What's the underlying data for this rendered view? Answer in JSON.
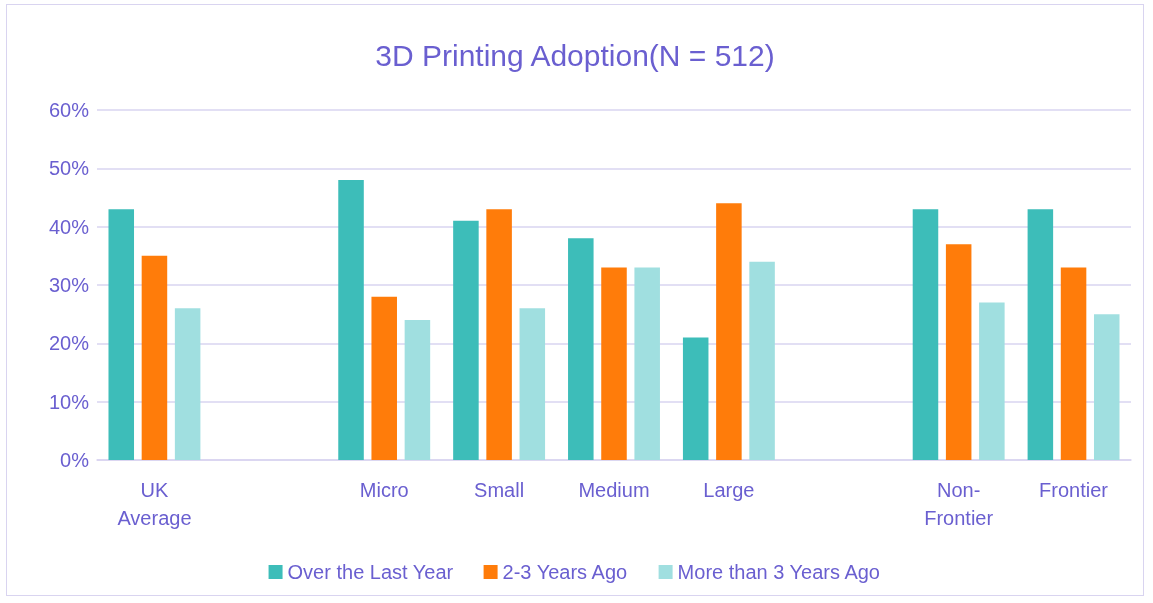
{
  "chart_data": {
    "type": "bar",
    "title": "3D Printing Adoption(N = 512)",
    "categories": [
      "UK\nAverage",
      null,
      "Micro",
      "Small",
      "Medium",
      "Large",
      null,
      "Non-\nFrontier",
      "Frontier"
    ],
    "series": [
      {
        "name": "Over the Last Year",
        "color": "#3dbdb9",
        "values": [
          43,
          null,
          48,
          41,
          38,
          21,
          null,
          43,
          43
        ]
      },
      {
        "name": "2-3 Years Ago",
        "color": "#ff7c0a",
        "values": [
          35,
          null,
          28,
          43,
          33,
          44,
          null,
          37,
          33
        ]
      },
      {
        "name": "More than 3 Years Ago",
        "color": "#a0dfe0",
        "values": [
          26,
          null,
          24,
          26,
          33,
          34,
          null,
          27,
          25
        ]
      }
    ],
    "ylim": [
      0,
      60
    ],
    "yticks": [
      {
        "value": 0,
        "label": "0%"
      },
      {
        "value": 10,
        "label": "10%"
      },
      {
        "value": 20,
        "label": "20%"
      },
      {
        "value": 30,
        "label": "30%"
      },
      {
        "value": 40,
        "label": "40%"
      },
      {
        "value": 50,
        "label": "50%"
      },
      {
        "value": 60,
        "label": "60%"
      }
    ],
    "grid": "y",
    "legend": "bottom"
  }
}
